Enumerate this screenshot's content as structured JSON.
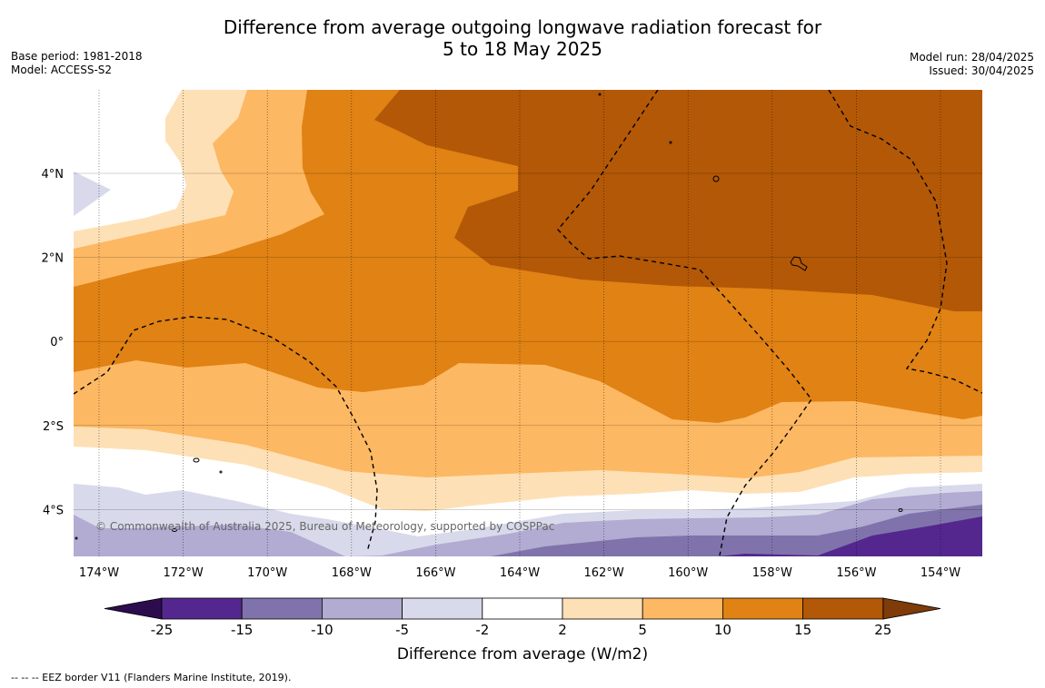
{
  "header": {
    "title_line1": "Difference from average outgoing longwave radiation forecast for",
    "title_line2": "5 to 18 May 2025",
    "base_period": "Base period: 1981-2018",
    "model": "Model: ACCESS-S2",
    "model_run": "Model run: 28/04/2025",
    "issued": "Issued: 30/04/2025"
  },
  "map": {
    "lon_ticks": [
      "174°W",
      "172°W",
      "170°W",
      "168°W",
      "166°W",
      "164°W",
      "162°W",
      "160°W",
      "158°W",
      "156°W",
      "154°W"
    ],
    "lat_ticks": [
      "4°N",
      "2°N",
      "0°",
      "2°S",
      "4°S"
    ],
    "copyright": "© Commonwealth of Australia 2025, Bureau of Meteorology, supported by COSPPac"
  },
  "colorbar": {
    "title": "Difference from average (W/m2)",
    "levels": [
      "-25",
      "-15",
      "-10",
      "-5",
      "-2",
      "2",
      "5",
      "10",
      "15",
      "25"
    ],
    "colors": {
      "below_-25": "#2d0c4e",
      "-25_-15": "#54278f",
      "-15_-10": "#8073ac",
      "-10_-5": "#b2abd2",
      "-5_-2": "#d8daeb",
      "-2_2": "#ffffff",
      "2_5": "#fee0b6",
      "5_10": "#fdb863",
      "10_15": "#e08214",
      "15_25": "#b35806",
      "above_25": "#7f3b08"
    }
  },
  "footnote": "--  --  -- EEZ border V11 (Flanders Marine Institute, 2019)."
}
